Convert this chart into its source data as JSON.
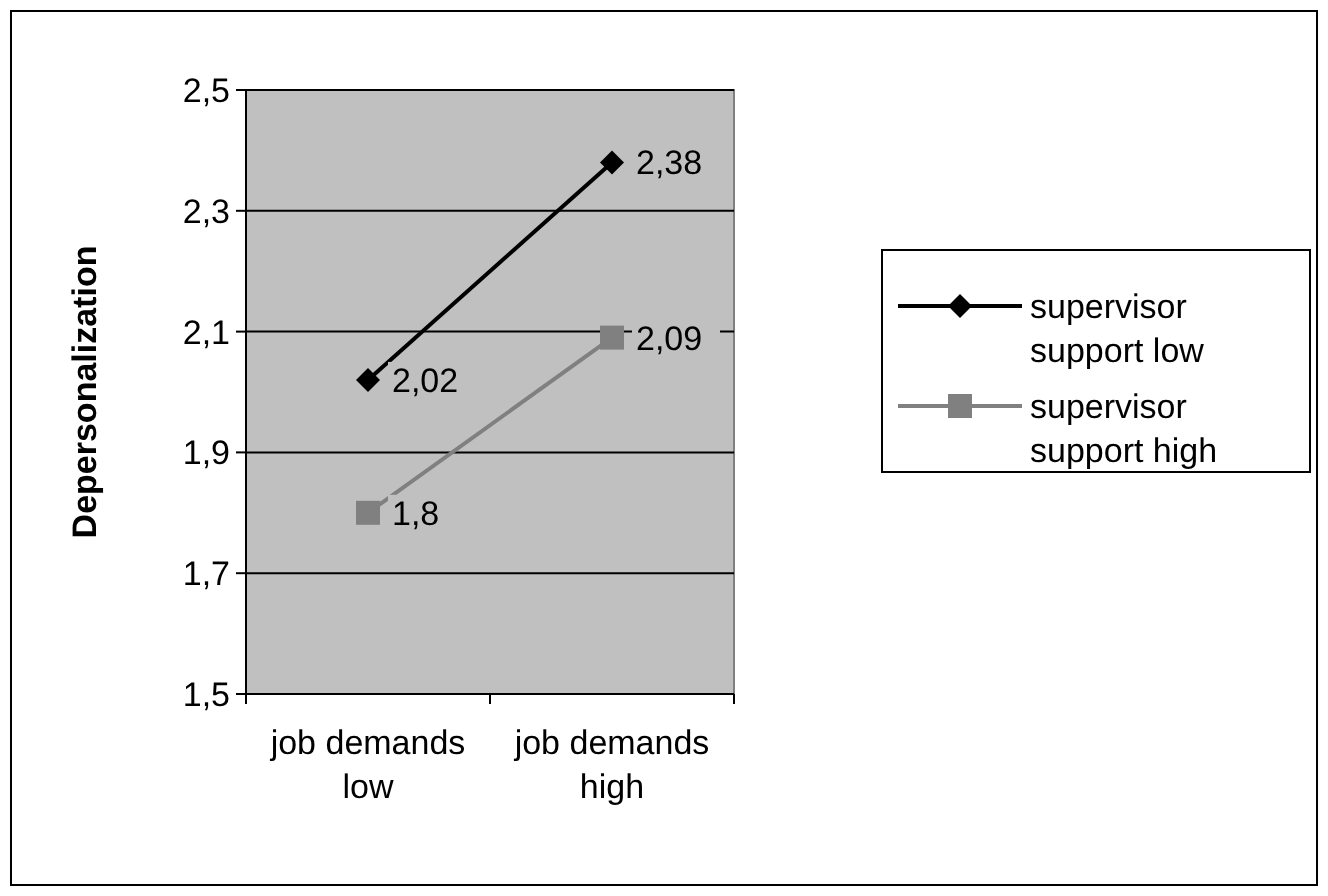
{
  "chart_data": {
    "type": "line",
    "ylabel": "Depersonalization",
    "categories": [
      "job demands low",
      "job demands high"
    ],
    "series": [
      {
        "name": "supervisor support low",
        "color": "#000000",
        "marker": "diamond",
        "values": [
          2.02,
          2.38
        ],
        "value_labels": [
          "2,02",
          "2,38"
        ]
      },
      {
        "name": "supervisor support high",
        "color": "#808080",
        "marker": "square",
        "values": [
          1.8,
          2.09
        ],
        "value_labels": [
          "1,8",
          "2,09"
        ]
      }
    ],
    "ylim": [
      1.5,
      2.5
    ],
    "yticks": [
      {
        "value": 1.5,
        "label": "1,5"
      },
      {
        "value": 1.7,
        "label": "1,7"
      },
      {
        "value": 1.9,
        "label": "1,9"
      },
      {
        "value": 2.1,
        "label": "2,1"
      },
      {
        "value": 2.3,
        "label": "2,3"
      },
      {
        "value": 2.5,
        "label": "2,5"
      }
    ],
    "grid": "y",
    "legend": "right"
  }
}
